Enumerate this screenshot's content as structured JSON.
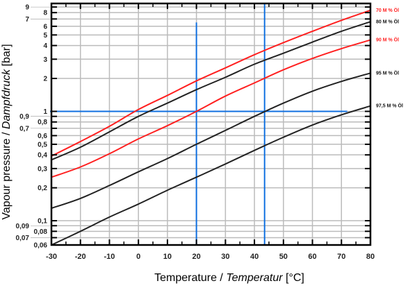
{
  "chart_data": {
    "type": "line",
    "title": "",
    "xlabel": "Temperature / ",
    "xlabel_italic": "Temperatur",
    "xlabel_unit": " [°C]",
    "ylabel": "Vapour pressure / ",
    "ylabel_italic": "Dampfdruck",
    "ylabel_unit": " [bar]",
    "xlim": [
      -30,
      80
    ],
    "ylim": [
      0.06,
      9.7
    ],
    "yscale": "log",
    "grid": true,
    "x_ticks": [
      "-30",
      "-20",
      "-10",
      "0",
      "10",
      "20",
      "30",
      "40",
      "50",
      "60",
      "70",
      "80"
    ],
    "y_ticks": [
      {
        "v": 0.06,
        "t": "0,06"
      },
      {
        "v": 0.07,
        "t": "0,07"
      },
      {
        "v": 0.08,
        "t": "0,08"
      },
      {
        "v": 0.09,
        "t": "0,09"
      },
      {
        "v": 0.1,
        "t": "0,1"
      },
      {
        "v": 0.2,
        "t": "0,2"
      },
      {
        "v": 0.3,
        "t": "0,3"
      },
      {
        "v": 0.4,
        "t": "0,4"
      },
      {
        "v": 0.5,
        "t": "0,5"
      },
      {
        "v": 0.6,
        "t": "0,6"
      },
      {
        "v": 0.7,
        "t": "0,7"
      },
      {
        "v": 0.8,
        "t": "0,8"
      },
      {
        "v": 0.9,
        "t": "0,9"
      },
      {
        "v": 1,
        "t": "1"
      },
      {
        "v": 2,
        "t": "2"
      },
      {
        "v": 3,
        "t": "3"
      },
      {
        "v": 4,
        "t": "4"
      },
      {
        "v": 5,
        "t": "5"
      },
      {
        "v": 6,
        "t": "6"
      },
      {
        "v": 7,
        "t": "7"
      },
      {
        "v": 8,
        "t": "8"
      },
      {
        "v": 9,
        "t": "9"
      }
    ],
    "x": [
      -30,
      -20,
      -10,
      0,
      10,
      20,
      30,
      40,
      50,
      60,
      70,
      80
    ],
    "series": [
      {
        "name": "70  M % Öl",
        "color": "#ff2020",
        "values": [
          0.39,
          0.53,
          0.73,
          1.04,
          1.4,
          1.9,
          2.5,
          3.3,
          4.25,
          5.4,
          6.8,
          8.4
        ]
      },
      {
        "name": "80  M % Öl",
        "color": "#222222",
        "values": [
          0.36,
          0.47,
          0.65,
          0.9,
          1.19,
          1.58,
          2.05,
          2.7,
          3.4,
          4.3,
          5.4,
          6.6
        ]
      },
      {
        "name": "90  M % Öl",
        "color": "#ff2020",
        "values": [
          0.25,
          0.31,
          0.41,
          0.56,
          0.74,
          1.0,
          1.38,
          1.82,
          2.4,
          3.05,
          3.75,
          4.5
        ]
      },
      {
        "name": "95  M % Öl",
        "color": "#222222",
        "values": [
          0.13,
          0.16,
          0.21,
          0.28,
          0.37,
          0.5,
          0.67,
          0.9,
          1.19,
          1.53,
          1.88,
          2.24
        ]
      },
      {
        "name": "97,5 M % Öl",
        "color": "#222222",
        "values": [
          0.06,
          0.08,
          0.108,
          0.142,
          0.19,
          0.25,
          0.33,
          0.44,
          0.58,
          0.75,
          0.93,
          1.12
        ]
      }
    ],
    "reference_lines": [
      {
        "orientation": "horizontal",
        "y": 1,
        "x_from": -30,
        "x_to": 72,
        "color": "#1070e0"
      },
      {
        "orientation": "vertical",
        "x": 20,
        "y_from": 0.06,
        "y_to": 6.5,
        "color": "#1070e0"
      },
      {
        "orientation": "vertical",
        "x": 43.5,
        "y_from": 0.06,
        "y_to": 9.7,
        "color": "#1070e0"
      }
    ]
  }
}
